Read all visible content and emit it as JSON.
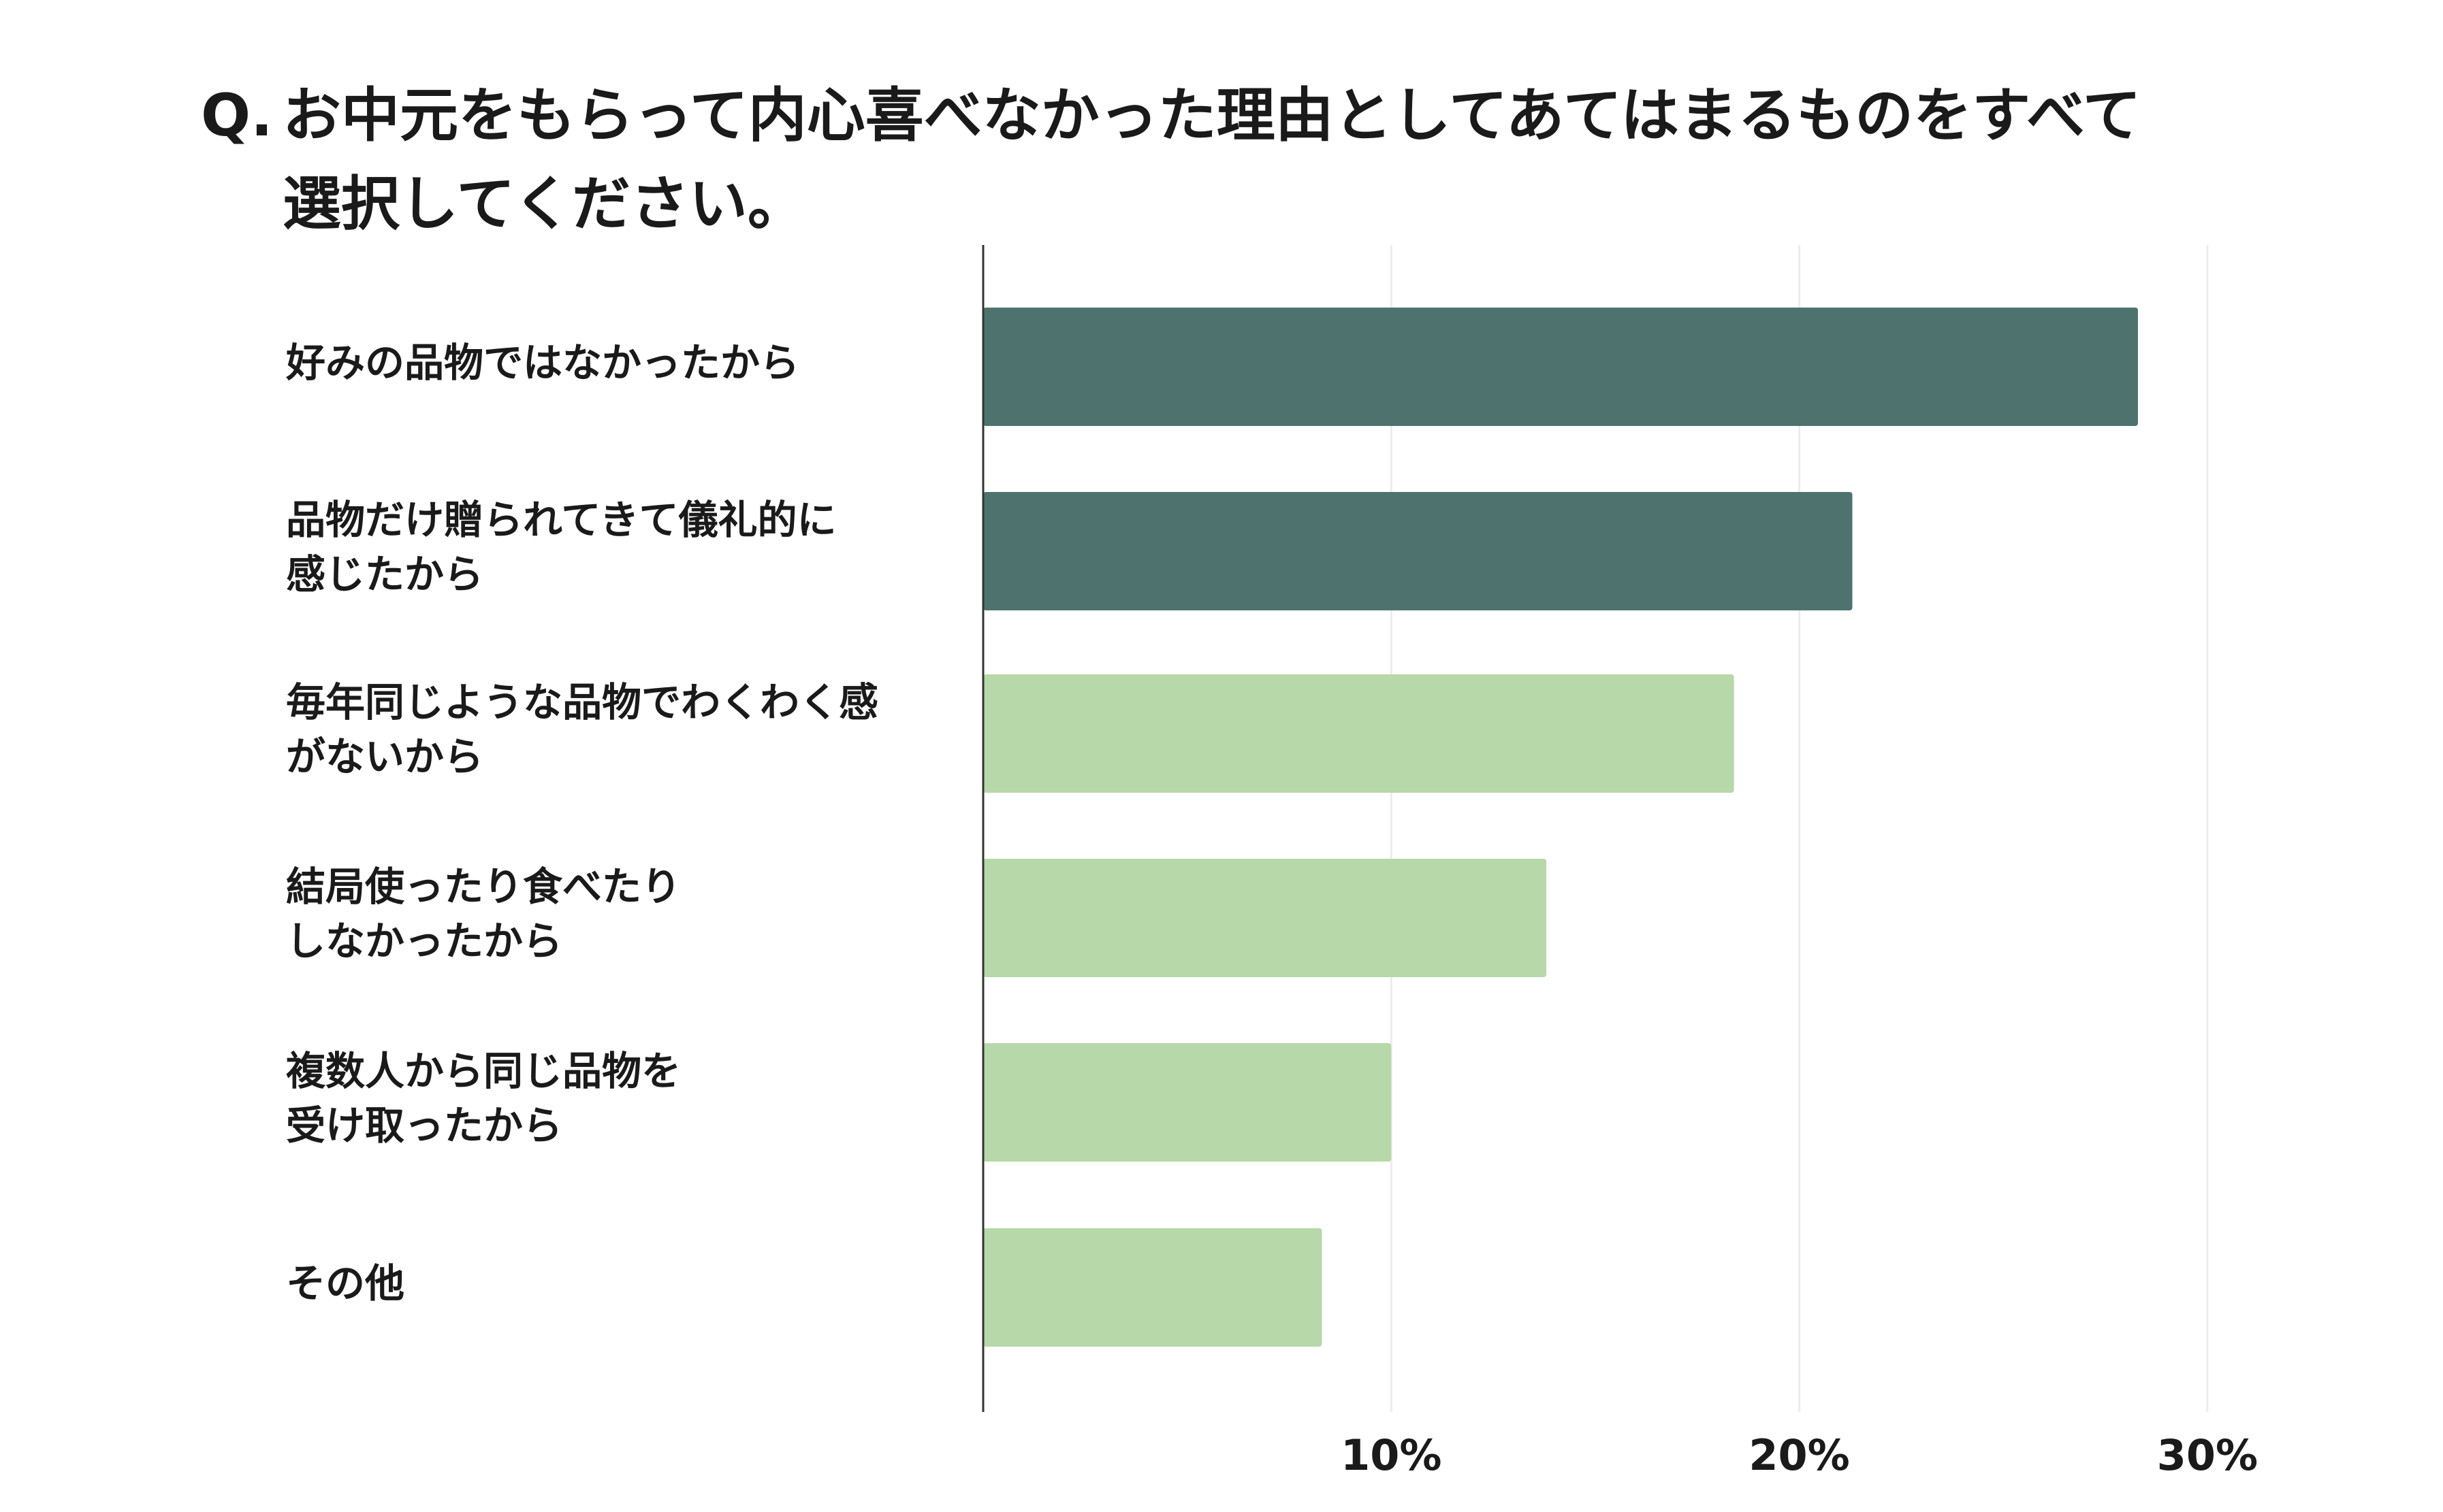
{
  "title": {
    "prefix": "Q.",
    "line1": "お中元をもらって内心喜べなかった理由としてあてはまるものをすべて",
    "line2": "選択してください。"
  },
  "colors": {
    "highlight": "#4e736f",
    "normal": "#b7d8a8",
    "grid": "#ececec",
    "axis": "#333333",
    "text": "#1a1a1a"
  },
  "chart_data": {
    "type": "bar",
    "orientation": "horizontal",
    "title": "Q. お中元をもらって内心喜べなかった理由としてあてはまるものをすべて選択してください。",
    "categories": [
      [
        "好みの品物ではなかったから"
      ],
      [
        "品物だけ贈られてきて儀礼的に",
        "感じたから"
      ],
      [
        "毎年同じような品物でわくわく感",
        "がないから"
      ],
      [
        "結局使ったり食べたり",
        "しなかったから"
      ],
      [
        "複数人から同じ品物を",
        "受け取ったから"
      ],
      [
        "その他"
      ]
    ],
    "values": [
      28.3,
      21.3,
      18.4,
      13.8,
      10.0,
      8.3
    ],
    "highlighted": [
      true,
      true,
      false,
      false,
      false,
      false
    ],
    "xlim": [
      0,
      30
    ],
    "xticks": [
      10,
      20,
      30
    ],
    "xtick_labels": [
      "10%",
      "20%",
      "30%"
    ],
    "grid": true,
    "legend": "none"
  }
}
